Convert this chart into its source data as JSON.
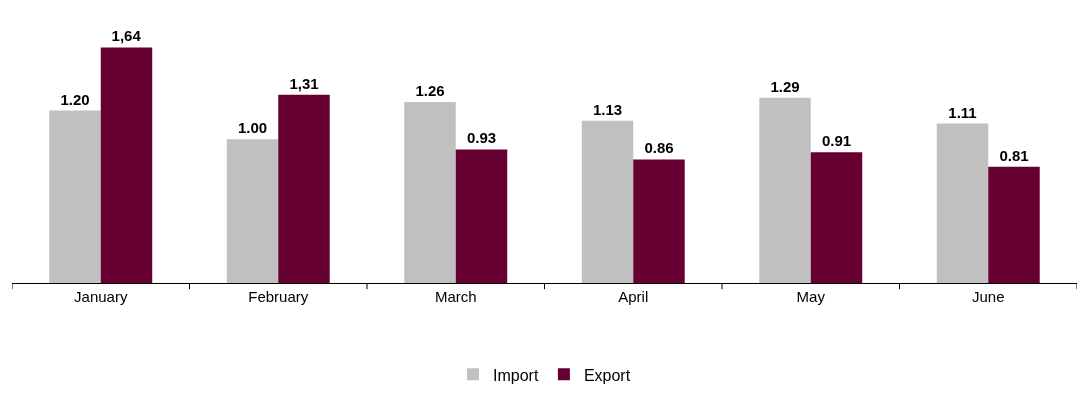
{
  "chart_data": {
    "type": "bar",
    "categories": [
      "January",
      "February",
      "March",
      "April",
      "May",
      "June"
    ],
    "series": [
      {
        "name": "Import",
        "color": "#c0c0c0",
        "values": [
          1.2,
          1.0,
          1.26,
          1.13,
          1.29,
          1.11
        ],
        "value_labels": [
          "1.20",
          "1.00",
          "1.26",
          "1.13",
          "1.29",
          "1.11"
        ]
      },
      {
        "name": "Export",
        "color": "#660033",
        "values": [
          1.64,
          1.31,
          0.93,
          0.86,
          0.91,
          0.81
        ],
        "value_labels": [
          "1,64",
          "1,31",
          "0.93",
          "0.86",
          "0.91",
          "0.81"
        ]
      }
    ],
    "legend": "bottom"
  }
}
